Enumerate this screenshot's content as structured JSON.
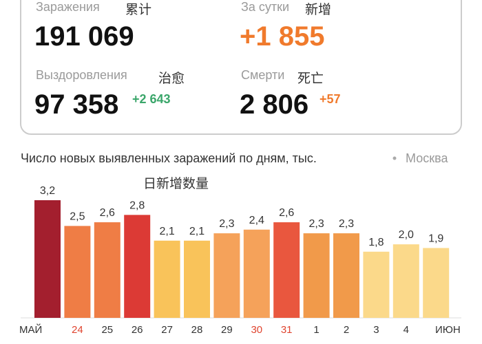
{
  "stats": {
    "total": {
      "label": "Заражения",
      "note": "累计",
      "value": "191 069"
    },
    "daily": {
      "label": "За сутки",
      "note": "新增",
      "value": "+1 855"
    },
    "recovered": {
      "label": "Выздоровления",
      "note": "治愈",
      "value": "97 358",
      "delta": "+2 643"
    },
    "deaths": {
      "label": "Смерти",
      "note": "死亡",
      "value": "2 806",
      "delta": "+57"
    }
  },
  "chart_data": {
    "type": "bar",
    "title": "Число новых выявленных заражений по дням, тыс.",
    "legend": "Москва",
    "annotation": "日新增数量",
    "month_labels": [
      "МАЙ",
      "ИЮН"
    ],
    "categories": [
      null,
      "24",
      "25",
      "26",
      "27",
      "28",
      "29",
      "30",
      "31",
      "1",
      "2",
      "3",
      "4",
      null
    ],
    "category_colors": [
      "#333333",
      "#e0442f",
      "#333333",
      "#333333",
      "#333333",
      "#333333",
      "#333333",
      "#e0442f",
      "#e0442f",
      "#333333",
      "#333333",
      "#333333",
      "#333333",
      "#333333"
    ],
    "values": [
      3.2,
      2.5,
      2.6,
      2.8,
      2.1,
      2.1,
      2.3,
      2.4,
      2.6,
      2.3,
      2.3,
      1.8,
      2.0,
      1.9
    ],
    "value_labels": [
      "3,2",
      "2,5",
      "2,6",
      "2,8",
      "2,1",
      "2,1",
      "2,3",
      "2,4",
      "2,6",
      "2,3",
      "2,3",
      "1,8",
      "2,0",
      "1,9"
    ],
    "colors": [
      "#a31f2e",
      "#ef7d45",
      "#ef7d45",
      "#dc3a35",
      "#f9c35a",
      "#f9c35a",
      "#f5a25a",
      "#f5a25a",
      "#e9573e",
      "#f19a4a",
      "#f19a4a",
      "#fbd98a",
      "#fbd98a",
      "#fbd98a"
    ]
  }
}
